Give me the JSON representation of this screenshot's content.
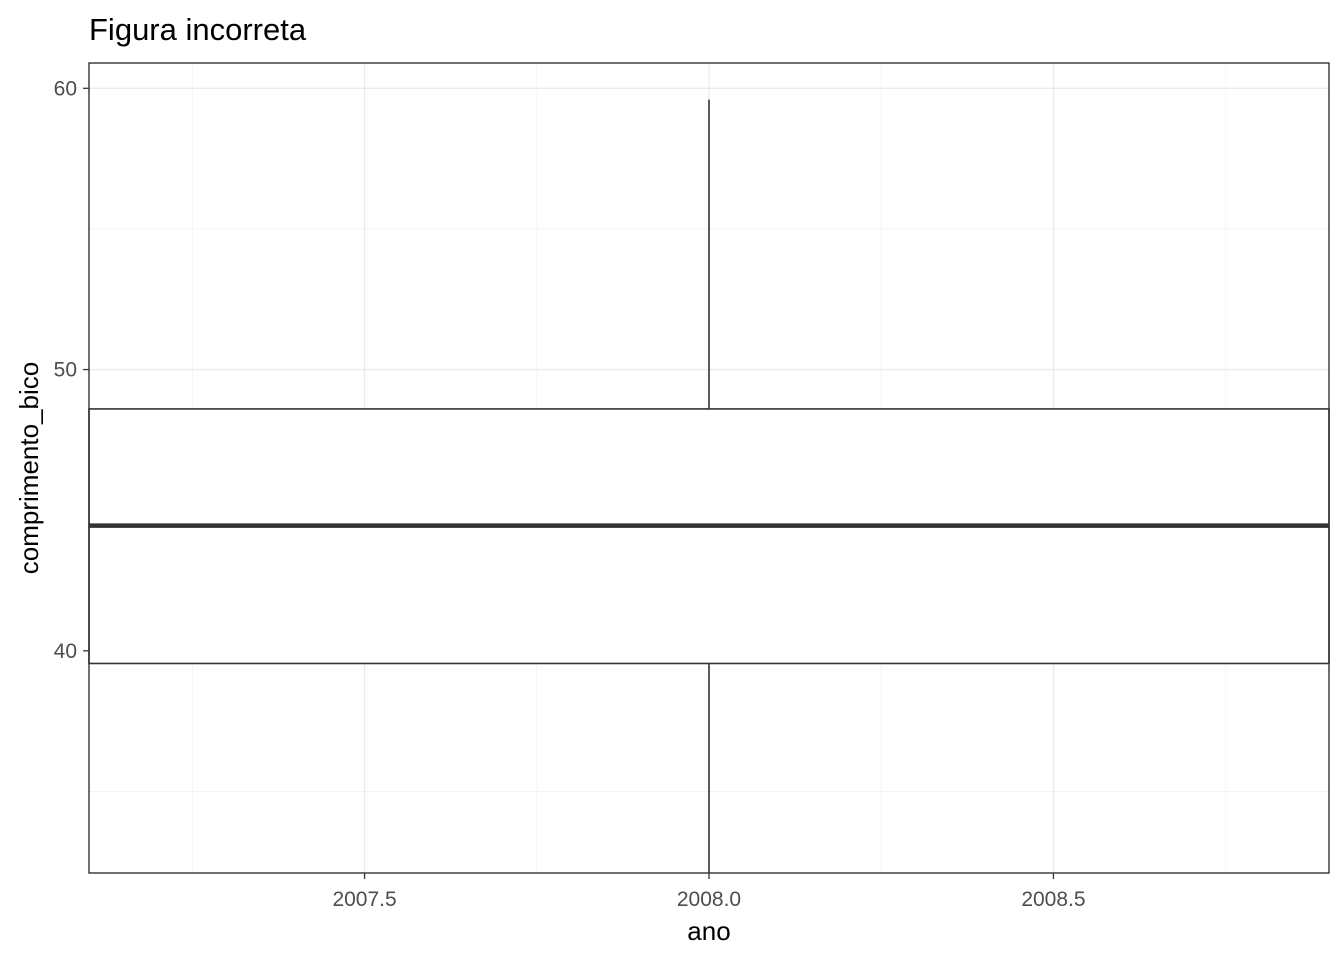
{
  "chart_data": {
    "type": "box",
    "title": "Figura incorreta",
    "xlabel": "ano",
    "ylabel": "comprimento_bico",
    "xlim": [
      2007.1,
      2008.9
    ],
    "ylim": [
      32.1,
      60.9
    ],
    "x_ticks": [
      2007.5,
      2008.0,
      2008.5
    ],
    "x_tick_labels": [
      "2007.5",
      "2008.0",
      "2008.5"
    ],
    "y_ticks": [
      40,
      50,
      60
    ],
    "y_tick_labels": [
      "40",
      "50",
      "60"
    ],
    "grid": true,
    "boxes": [
      {
        "x": 2008.0,
        "x_from": 2007.1,
        "x_to": 2008.9,
        "whisker_low": 32.1,
        "q1": 39.55,
        "median": 44.45,
        "q3": 48.6,
        "whisker_high": 59.6
      }
    ],
    "colors": {
      "panel_border": "#333333",
      "grid_major": "#ebebeb",
      "grid_minor": "#f4f4f4",
      "box_line": "#333333",
      "box_fill": "#ffffff",
      "tick_label": "#4d4d4d"
    }
  }
}
